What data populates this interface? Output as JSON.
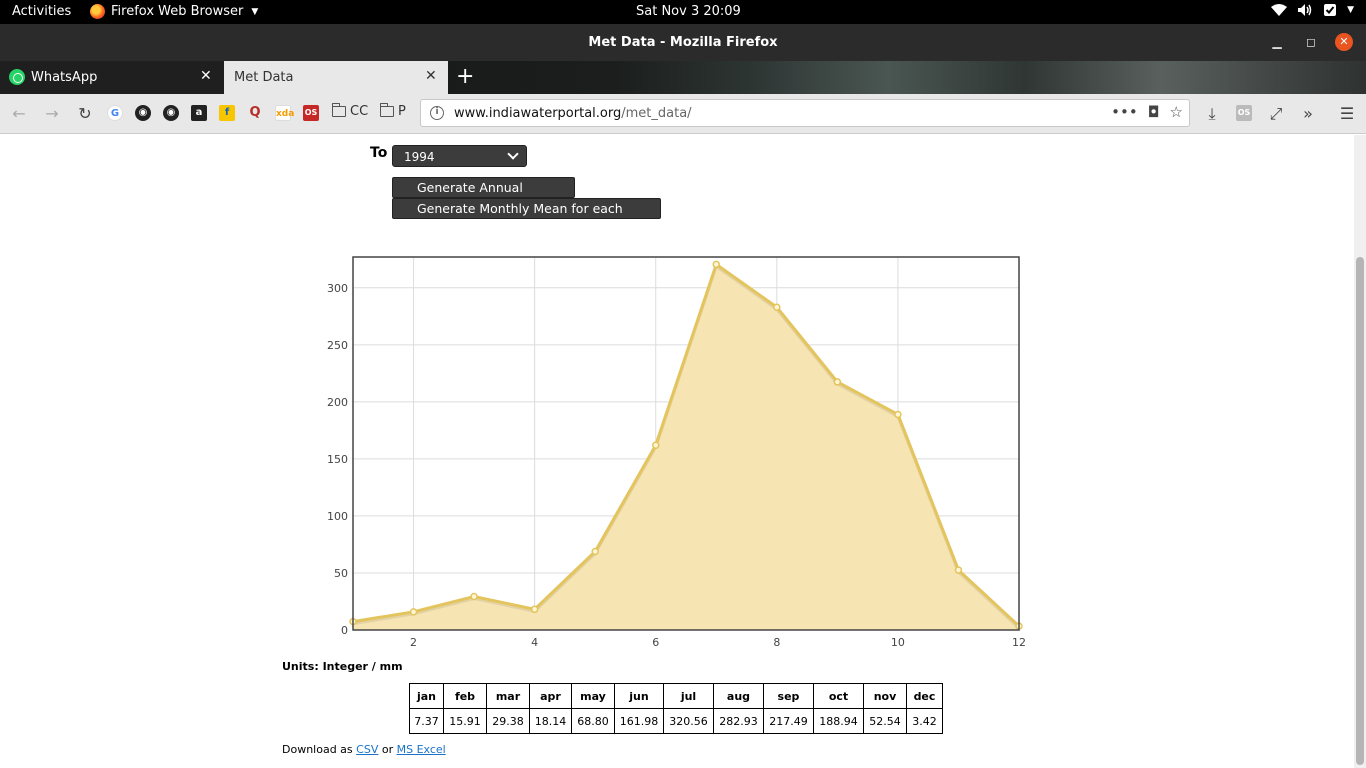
{
  "topbar": {
    "activities": "Activities",
    "app_menu": "Firefox Web Browser",
    "clock": "Sat Nov 3  20:09"
  },
  "window": {
    "title": "Met Data - Mozilla Firefox"
  },
  "tabs": [
    {
      "label": "WhatsApp",
      "active": false
    },
    {
      "label": "Met Data",
      "active": true
    }
  ],
  "bookmarks": {
    "folder_cc": "CC",
    "folder_p": "P"
  },
  "urlbar": {
    "host": "www.indiawaterportal.org",
    "path": "/met_data/"
  },
  "form": {
    "to_label": "To",
    "year_selected": "1994",
    "annual_button": "Generate Annual Mean",
    "monthly_button": "Generate Monthly Mean for each year"
  },
  "chart_data": {
    "type": "area",
    "x": [
      1,
      2,
      3,
      4,
      5,
      6,
      7,
      8,
      9,
      10,
      11,
      12
    ],
    "values": [
      7.37,
      15.91,
      29.38,
      18.14,
      68.8,
      161.98,
      320.56,
      282.93,
      217.49,
      188.94,
      52.54,
      3.42
    ],
    "xlim": [
      1,
      12
    ],
    "ylim": [
      0,
      327
    ],
    "xticks": [
      2,
      4,
      6,
      8,
      10,
      12
    ],
    "yticks": [
      0,
      50,
      100,
      150,
      200,
      250,
      300
    ],
    "grid": true,
    "line_color": "#e3c45d",
    "fill_color": "#f7e4b3"
  },
  "units_label": "Units: Integer / mm",
  "table": {
    "headers": [
      "jan",
      "feb",
      "mar",
      "apr",
      "may",
      "jun",
      "jul",
      "aug",
      "sep",
      "oct",
      "nov",
      "dec"
    ],
    "values": [
      "7.37",
      "15.91",
      "29.38",
      "18.14",
      "68.80",
      "161.98",
      "320.56",
      "282.93",
      "217.49",
      "188.94",
      "52.54",
      "3.42"
    ]
  },
  "download": {
    "prefix": "Download as ",
    "csv": "CSV",
    "or": " or ",
    "excel": "MS Excel"
  }
}
